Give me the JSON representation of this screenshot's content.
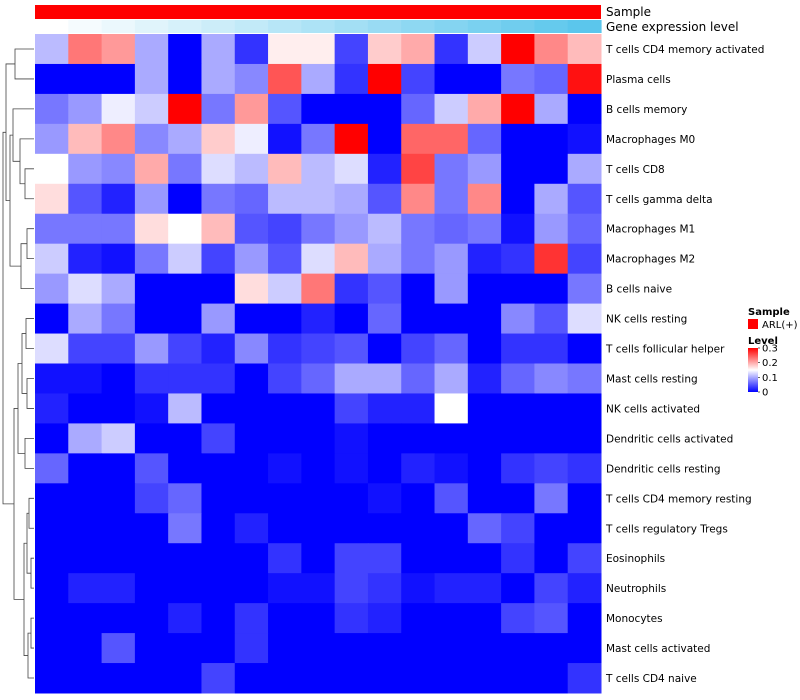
{
  "chart_data": {
    "type": "heatmap",
    "annotations": [
      {
        "name": "Sample",
        "label": "Sample",
        "color": "#ff0000"
      },
      {
        "name": "Gene expression level",
        "label": "Gene expression level",
        "gradient": [
          "#ffffff",
          "#5bc6ec"
        ]
      }
    ],
    "rows": [
      "T cells CD4 memory activated",
      "Plasma cells",
      "B cells memory",
      "Macrophages M0",
      "T cells CD8",
      "T cells gamma delta",
      "Macrophages M1",
      "Macrophages M2",
      "B cells naive",
      "NK cells resting",
      "T cells follicular helper",
      "Mast cells resting",
      "NK cells activated",
      "Dendritic cells activated",
      "Dendritic cells resting",
      "T cells CD4 memory resting",
      "T cells regulatory  Tregs",
      "Eosinophils",
      "Neutrophils",
      "Monocytes",
      "Mast cells activated",
      "T cells CD4 naive"
    ],
    "n_columns": 17,
    "values": [
      [
        0.11,
        0.23,
        0.21,
        0.1,
        0.0,
        0.1,
        0.03,
        0.16,
        0.16,
        0.04,
        0.18,
        0.2,
        0.03,
        0.12,
        0.3,
        0.22,
        0.19
      ],
      [
        0.0,
        0.0,
        0.0,
        0.1,
        0.0,
        0.1,
        0.08,
        0.25,
        0.1,
        0.03,
        0.3,
        0.04,
        0.0,
        0.0,
        0.07,
        0.06,
        0.29
      ],
      [
        0.07,
        0.09,
        0.14,
        0.12,
        0.3,
        0.07,
        0.21,
        0.05,
        0.0,
        0.0,
        0.0,
        0.06,
        0.12,
        0.2,
        0.3,
        0.1,
        0.0
      ],
      [
        0.09,
        0.19,
        0.22,
        0.08,
        0.1,
        0.18,
        0.14,
        0.01,
        0.07,
        0.3,
        0.0,
        0.24,
        0.24,
        0.06,
        0.0,
        0.0,
        0.01
      ],
      [
        0.15,
        0.09,
        0.08,
        0.2,
        0.07,
        0.13,
        0.11,
        0.19,
        0.11,
        0.13,
        0.02,
        0.26,
        0.07,
        0.09,
        0.0,
        0.0,
        0.1
      ],
      [
        0.17,
        0.05,
        0.02,
        0.09,
        0.0,
        0.07,
        0.06,
        0.11,
        0.11,
        0.1,
        0.05,
        0.22,
        0.07,
        0.22,
        0.0,
        0.1,
        0.05
      ],
      [
        0.07,
        0.07,
        0.07,
        0.17,
        0.15,
        0.19,
        0.05,
        0.04,
        0.07,
        0.09,
        0.11,
        0.07,
        0.06,
        0.07,
        0.01,
        0.09,
        0.06
      ],
      [
        0.12,
        0.02,
        0.01,
        0.07,
        0.12,
        0.04,
        0.09,
        0.05,
        0.13,
        0.19,
        0.1,
        0.07,
        0.09,
        0.02,
        0.03,
        0.27,
        0.04
      ],
      [
        0.09,
        0.13,
        0.1,
        0.0,
        0.0,
        0.0,
        0.17,
        0.12,
        0.23,
        0.03,
        0.05,
        0.0,
        0.09,
        0.0,
        0.0,
        0.0,
        0.07
      ],
      [
        0.0,
        0.1,
        0.07,
        0.0,
        0.0,
        0.09,
        0.0,
        0.0,
        0.02,
        0.0,
        0.06,
        0.0,
        0.0,
        0.0,
        0.08,
        0.05,
        0.13
      ],
      [
        0.13,
        0.04,
        0.04,
        0.09,
        0.04,
        0.02,
        0.08,
        0.03,
        0.04,
        0.05,
        0.0,
        0.04,
        0.06,
        0.0,
        0.03,
        0.03,
        0.0
      ],
      [
        0.01,
        0.01,
        0.0,
        0.03,
        0.03,
        0.03,
        0.0,
        0.04,
        0.06,
        0.1,
        0.1,
        0.06,
        0.1,
        0.02,
        0.06,
        0.08,
        0.07
      ],
      [
        0.02,
        0.0,
        0.0,
        0.01,
        0.11,
        0.0,
        0.0,
        0.0,
        0.0,
        0.04,
        0.02,
        0.02,
        0.15,
        0.0,
        0.0,
        0.0,
        0.0
      ],
      [
        0.0,
        0.1,
        0.12,
        0.0,
        0.0,
        0.04,
        0.0,
        0.0,
        0.0,
        0.01,
        0.0,
        0.0,
        0.0,
        0.0,
        0.0,
        0.0,
        0.0
      ],
      [
        0.06,
        0.0,
        0.0,
        0.05,
        0.0,
        0.0,
        0.0,
        0.01,
        0.0,
        0.01,
        0.0,
        0.02,
        0.01,
        0.0,
        0.03,
        0.04,
        0.03
      ],
      [
        0.0,
        0.0,
        0.0,
        0.04,
        0.06,
        0.0,
        0.0,
        0.0,
        0.0,
        0.0,
        0.01,
        0.0,
        0.05,
        0.0,
        0.0,
        0.07,
        0.0
      ],
      [
        0.0,
        0.0,
        0.0,
        0.0,
        0.07,
        0.0,
        0.02,
        0.0,
        0.0,
        0.0,
        0.0,
        0.0,
        0.0,
        0.06,
        0.04,
        0.0,
        0.0
      ],
      [
        0.0,
        0.0,
        0.0,
        0.0,
        0.0,
        0.0,
        0.0,
        0.03,
        0.0,
        0.04,
        0.04,
        0.0,
        0.0,
        0.0,
        0.03,
        0.0,
        0.04
      ],
      [
        0.0,
        0.02,
        0.02,
        0.0,
        0.0,
        0.0,
        0.0,
        0.01,
        0.01,
        0.04,
        0.03,
        0.01,
        0.02,
        0.02,
        0.0,
        0.04,
        0.02
      ],
      [
        0.0,
        0.0,
        0.0,
        0.0,
        0.02,
        0.0,
        0.03,
        0.0,
        0.0,
        0.03,
        0.02,
        0.0,
        0.0,
        0.0,
        0.04,
        0.05,
        0.0
      ],
      [
        0.0,
        0.0,
        0.05,
        0.0,
        0.0,
        0.0,
        0.03,
        0.0,
        0.0,
        0.0,
        0.0,
        0.0,
        0.0,
        0.0,
        0.0,
        0.0,
        0.0
      ],
      [
        0.0,
        0.0,
        0.0,
        0.0,
        0.0,
        0.04,
        0.0,
        0.0,
        0.0,
        0.0,
        0.0,
        0.0,
        0.0,
        0.0,
        0.0,
        0.0,
        0.03
      ]
    ],
    "color_scale": {
      "min": 0,
      "max": 0.3,
      "colors": [
        "#0000ff",
        "#ffffff",
        "#ff0000"
      ]
    },
    "legend": {
      "sample_title": "Sample",
      "sample_entry": "ARL(+)",
      "sample_color": "#ff0000",
      "level_title": "Level",
      "level_ticks": [
        "0.3",
        "0.2",
        "0.1",
        "0"
      ],
      "position": "right"
    },
    "dendrogram": "rows"
  }
}
